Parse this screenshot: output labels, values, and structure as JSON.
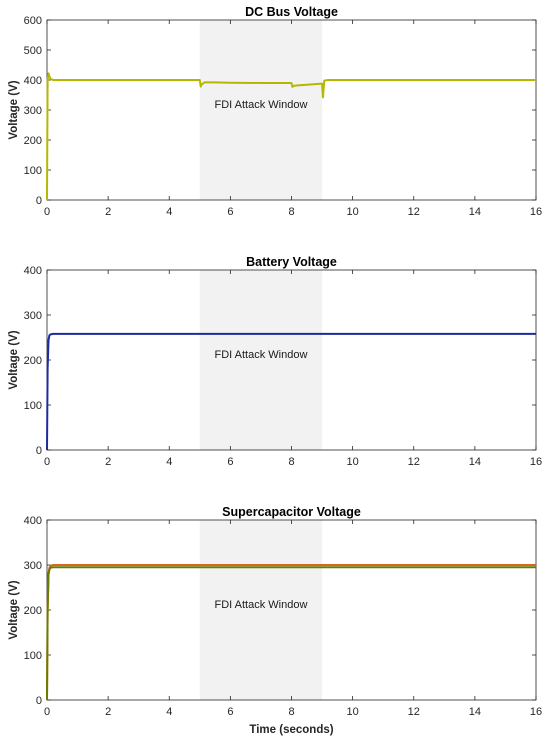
{
  "chart_data": [
    {
      "type": "line",
      "title": "DC Bus Voltage",
      "xlabel": "",
      "ylabel": "Voltage (V)",
      "xlim": [
        0,
        16
      ],
      "ylim": [
        0,
        600
      ],
      "xticks": [
        0,
        2,
        4,
        6,
        8,
        10,
        12,
        14,
        16
      ],
      "yticks": [
        0,
        100,
        200,
        300,
        400,
        500,
        600
      ],
      "shaded_region": {
        "x": [
          5,
          9
        ],
        "label": "FDI Attack Window",
        "color": "#f2f2f2"
      },
      "series": [
        {
          "color": "#b5b800",
          "x": [
            0,
            0.02,
            0.05,
            0.08,
            0.12,
            0.2,
            0.4,
            1,
            2,
            3,
            4,
            4.99,
            5.0,
            5.03,
            5.06,
            5.15,
            5.5,
            6,
            7,
            7.99,
            8.0,
            8.03,
            8.08,
            8.2,
            8.5,
            8.99,
            9.0,
            9.03,
            9.07,
            9.2,
            10,
            12,
            14,
            16
          ],
          "values": [
            0,
            400,
            422,
            412,
            404,
            400,
            400,
            400,
            400,
            400,
            400,
            400,
            400,
            378,
            385,
            392,
            392,
            391,
            390,
            390,
            390,
            377,
            381,
            382,
            384,
            388,
            388,
            342,
            398,
            400,
            400,
            400,
            400,
            400
          ]
        }
      ]
    },
    {
      "type": "line",
      "title": "Battery Voltage",
      "xlabel": "",
      "ylabel": "Voltage (V)",
      "xlim": [
        0,
        16
      ],
      "ylim": [
        0,
        400
      ],
      "xticks": [
        0,
        2,
        4,
        6,
        8,
        10,
        12,
        14,
        16
      ],
      "yticks": [
        0,
        100,
        200,
        300,
        400
      ],
      "shaded_region": {
        "x": [
          5,
          9
        ],
        "label": "FDI Attack Window",
        "color": "#f2f2f2"
      },
      "series": [
        {
          "color": "#1f2a9c",
          "x": [
            0,
            0.02,
            0.05,
            0.08,
            0.12,
            0.2,
            1,
            4,
            8,
            12,
            16
          ],
          "values": [
            0,
            180,
            245,
            255,
            257,
            258,
            258,
            258,
            258,
            258,
            258
          ]
        }
      ]
    },
    {
      "type": "line",
      "title": "Supercapacitor Voltage",
      "xlabel": "Time (seconds)",
      "ylabel": "Voltage (V)",
      "xlim": [
        0,
        16
      ],
      "ylim": [
        0,
        400
      ],
      "xticks": [
        0,
        2,
        4,
        6,
        8,
        10,
        12,
        14,
        16
      ],
      "yticks": [
        0,
        100,
        200,
        300,
        400
      ],
      "shaded_region": {
        "x": [
          5,
          9
        ],
        "label": "FDI Attack Window",
        "color": "#f2f2f2"
      },
      "series": [
        {
          "color": "#d2691e",
          "x": [
            0,
            0.02,
            0.05,
            0.08,
            0.12,
            0.2,
            1,
            4,
            8,
            12,
            16
          ],
          "values": [
            0,
            200,
            282,
            294,
            298,
            300,
            300,
            300,
            300,
            300,
            300
          ]
        },
        {
          "color": "#6b7a00",
          "x": [
            0,
            0.02,
            0.05,
            0.08,
            0.12,
            0.2,
            1,
            4,
            8,
            12,
            16
          ],
          "values": [
            0,
            195,
            278,
            290,
            294,
            295,
            295,
            295,
            295,
            295,
            295
          ]
        }
      ]
    }
  ]
}
